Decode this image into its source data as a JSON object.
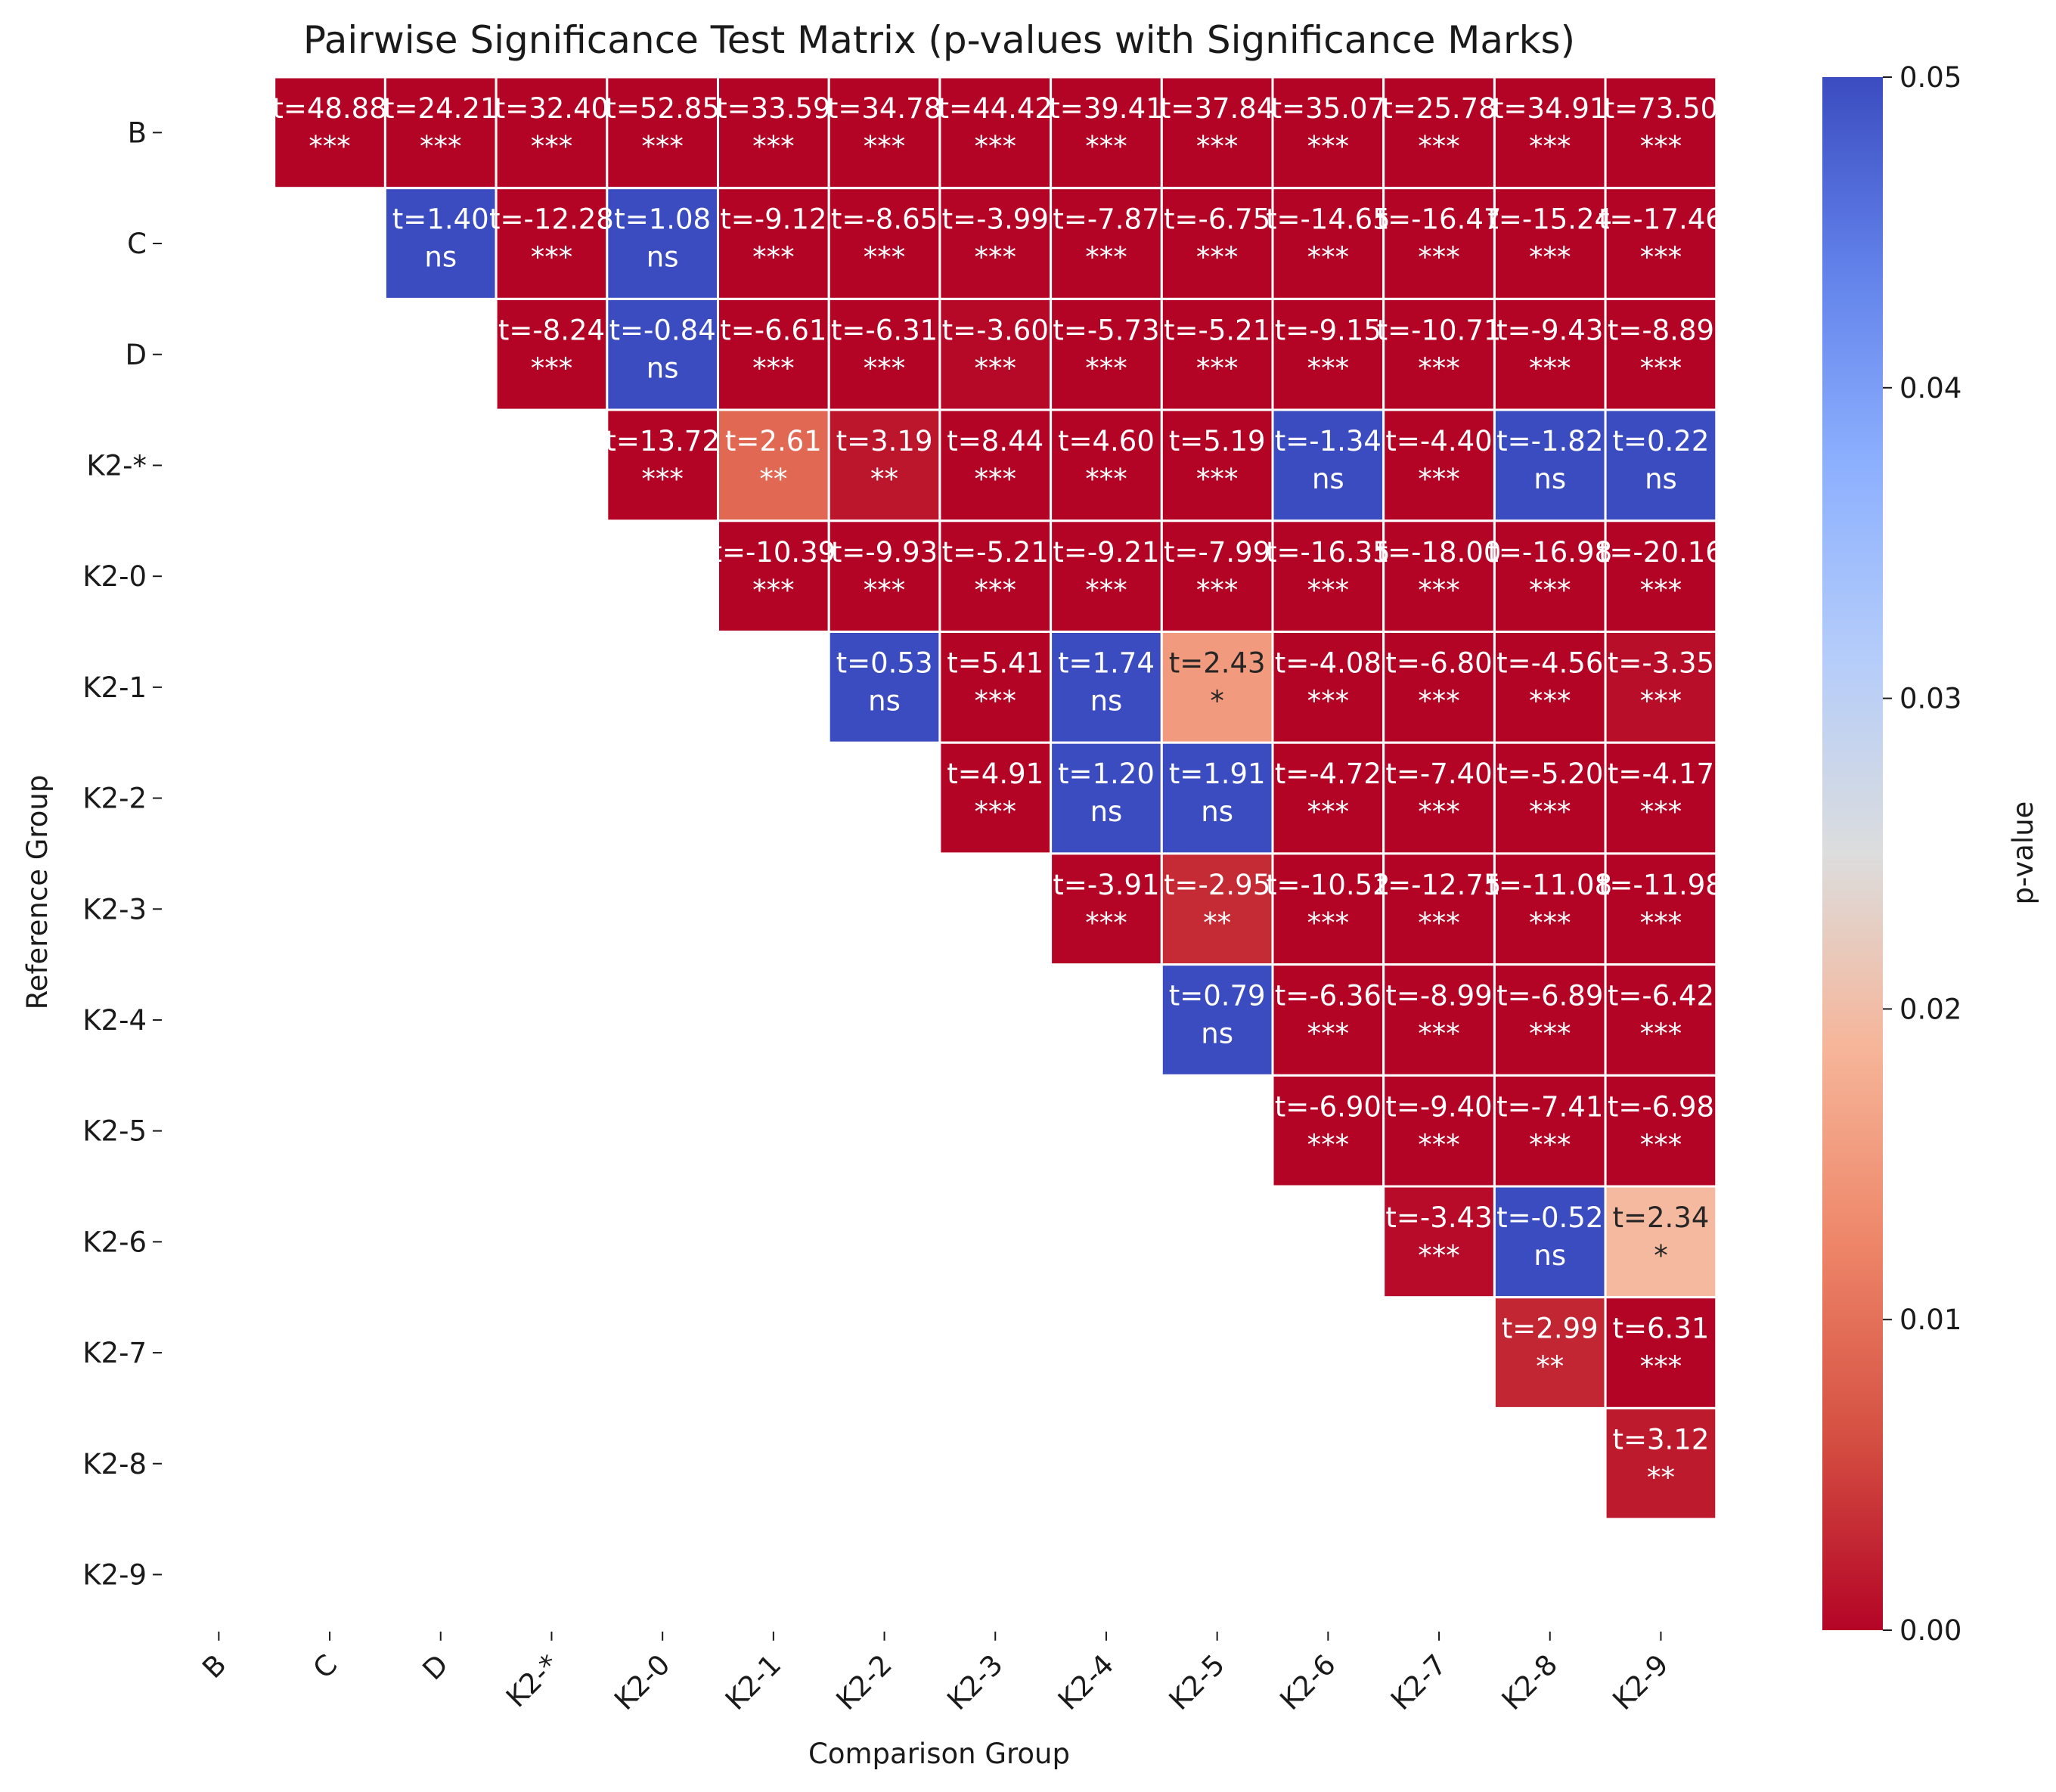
{
  "chart_data": {
    "type": "heatmap",
    "title": "Pairwise Significance Test Matrix (p-values with Significance Marks)",
    "xlabel": "Comparison Group",
    "ylabel": "Reference Group",
    "colorbar_label": "p-value",
    "colormap": "coolwarm",
    "color_range": [
      0.0,
      0.05
    ],
    "colorbar_ticks": [
      "0.00",
      "0.01",
      "0.02",
      "0.03",
      "0.04",
      "0.05"
    ],
    "row_labels": [
      "B",
      "C",
      "D",
      "K2-*",
      "K2-0",
      "K2-1",
      "K2-2",
      "K2-3",
      "K2-4",
      "K2-5",
      "K2-6",
      "K2-7",
      "K2-8",
      "K2-9"
    ],
    "col_labels": [
      "B",
      "C",
      "D",
      "K2-*",
      "K2-0",
      "K2-1",
      "K2-2",
      "K2-3",
      "K2-4",
      "K2-5",
      "K2-6",
      "K2-7",
      "K2-8",
      "K2-9"
    ],
    "cells": [
      {
        "row": "B",
        "col": "C",
        "t": "t=48.88",
        "mark": "***",
        "p": 0.0
      },
      {
        "row": "B",
        "col": "D",
        "t": "t=24.21",
        "mark": "***",
        "p": 0.0
      },
      {
        "row": "B",
        "col": "K2-*",
        "t": "t=32.40",
        "mark": "***",
        "p": 0.0
      },
      {
        "row": "B",
        "col": "K2-0",
        "t": "t=52.85",
        "mark": "***",
        "p": 0.0
      },
      {
        "row": "B",
        "col": "K2-1",
        "t": "t=33.59",
        "mark": "***",
        "p": 0.0
      },
      {
        "row": "B",
        "col": "K2-2",
        "t": "t=34.78",
        "mark": "***",
        "p": 0.0
      },
      {
        "row": "B",
        "col": "K2-3",
        "t": "t=44.42",
        "mark": "***",
        "p": 0.0
      },
      {
        "row": "B",
        "col": "K2-4",
        "t": "t=39.41",
        "mark": "***",
        "p": 0.0
      },
      {
        "row": "B",
        "col": "K2-5",
        "t": "t=37.84",
        "mark": "***",
        "p": 0.0
      },
      {
        "row": "B",
        "col": "K2-6",
        "t": "t=35.07",
        "mark": "***",
        "p": 0.0
      },
      {
        "row": "B",
        "col": "K2-7",
        "t": "t=25.78",
        "mark": "***",
        "p": 0.0
      },
      {
        "row": "B",
        "col": "K2-8",
        "t": "t=34.91",
        "mark": "***",
        "p": 0.0
      },
      {
        "row": "B",
        "col": "K2-9",
        "t": "t=73.50",
        "mark": "***",
        "p": 0.0
      },
      {
        "row": "C",
        "col": "D",
        "t": "t=1.40",
        "mark": "ns",
        "p": 0.05
      },
      {
        "row": "C",
        "col": "K2-*",
        "t": "t=-12.28",
        "mark": "***",
        "p": 0.0
      },
      {
        "row": "C",
        "col": "K2-0",
        "t": "t=1.08",
        "mark": "ns",
        "p": 0.05
      },
      {
        "row": "C",
        "col": "K2-1",
        "t": "t=-9.12",
        "mark": "***",
        "p": 0.0
      },
      {
        "row": "C",
        "col": "K2-2",
        "t": "t=-8.65",
        "mark": "***",
        "p": 0.0
      },
      {
        "row": "C",
        "col": "K2-3",
        "t": "t=-3.99",
        "mark": "***",
        "p": 0.0001
      },
      {
        "row": "C",
        "col": "K2-4",
        "t": "t=-7.87",
        "mark": "***",
        "p": 0.0
      },
      {
        "row": "C",
        "col": "K2-5",
        "t": "t=-6.75",
        "mark": "***",
        "p": 0.0
      },
      {
        "row": "C",
        "col": "K2-6",
        "t": "t=-14.65",
        "mark": "***",
        "p": 0.0
      },
      {
        "row": "C",
        "col": "K2-7",
        "t": "t=-16.47",
        "mark": "***",
        "p": 0.0
      },
      {
        "row": "C",
        "col": "K2-8",
        "t": "t=-15.24",
        "mark": "***",
        "p": 0.0
      },
      {
        "row": "C",
        "col": "K2-9",
        "t": "t=-17.46",
        "mark": "***",
        "p": 0.0
      },
      {
        "row": "D",
        "col": "K2-*",
        "t": "t=-8.24",
        "mark": "***",
        "p": 0.0
      },
      {
        "row": "D",
        "col": "K2-0",
        "t": "t=-0.84",
        "mark": "ns",
        "p": 0.05
      },
      {
        "row": "D",
        "col": "K2-1",
        "t": "t=-6.61",
        "mark": "***",
        "p": 0.0
      },
      {
        "row": "D",
        "col": "K2-2",
        "t": "t=-6.31",
        "mark": "***",
        "p": 0.0
      },
      {
        "row": "D",
        "col": "K2-3",
        "t": "t=-3.60",
        "mark": "***",
        "p": 0.0004
      },
      {
        "row": "D",
        "col": "K2-4",
        "t": "t=-5.73",
        "mark": "***",
        "p": 0.0
      },
      {
        "row": "D",
        "col": "K2-5",
        "t": "t=-5.21",
        "mark": "***",
        "p": 0.0
      },
      {
        "row": "D",
        "col": "K2-6",
        "t": "t=-9.15",
        "mark": "***",
        "p": 0.0
      },
      {
        "row": "D",
        "col": "K2-7",
        "t": "t=-10.71",
        "mark": "***",
        "p": 0.0
      },
      {
        "row": "D",
        "col": "K2-8",
        "t": "t=-9.43",
        "mark": "***",
        "p": 0.0
      },
      {
        "row": "D",
        "col": "K2-9",
        "t": "t=-8.89",
        "mark": "***",
        "p": 0.0
      },
      {
        "row": "K2-*",
        "col": "K2-0",
        "t": "t=13.72",
        "mark": "***",
        "p": 0.0
      },
      {
        "row": "K2-*",
        "col": "K2-1",
        "t": "t=2.61",
        "mark": "**",
        "p": 0.0092
      },
      {
        "row": "K2-*",
        "col": "K2-2",
        "t": "t=3.19",
        "mark": "**",
        "p": 0.0015
      },
      {
        "row": "K2-*",
        "col": "K2-3",
        "t": "t=8.44",
        "mark": "***",
        "p": 0.0
      },
      {
        "row": "K2-*",
        "col": "K2-4",
        "t": "t=4.60",
        "mark": "***",
        "p": 0.0
      },
      {
        "row": "K2-*",
        "col": "K2-5",
        "t": "t=5.19",
        "mark": "***",
        "p": 0.0
      },
      {
        "row": "K2-*",
        "col": "K2-6",
        "t": "t=-1.34",
        "mark": "ns",
        "p": 0.05
      },
      {
        "row": "K2-*",
        "col": "K2-7",
        "t": "t=-4.40",
        "mark": "***",
        "p": 0.0
      },
      {
        "row": "K2-*",
        "col": "K2-8",
        "t": "t=-1.82",
        "mark": "ns",
        "p": 0.05
      },
      {
        "row": "K2-*",
        "col": "K2-9",
        "t": "t=0.22",
        "mark": "ns",
        "p": 0.05
      },
      {
        "row": "K2-0",
        "col": "K2-1",
        "t": "t=-10.39",
        "mark": "***",
        "p": 0.0
      },
      {
        "row": "K2-0",
        "col": "K2-2",
        "t": "t=-9.93",
        "mark": "***",
        "p": 0.0
      },
      {
        "row": "K2-0",
        "col": "K2-3",
        "t": "t=-5.21",
        "mark": "***",
        "p": 0.0
      },
      {
        "row": "K2-0",
        "col": "K2-4",
        "t": "t=-9.21",
        "mark": "***",
        "p": 0.0
      },
      {
        "row": "K2-0",
        "col": "K2-5",
        "t": "t=-7.99",
        "mark": "***",
        "p": 0.0
      },
      {
        "row": "K2-0",
        "col": "K2-6",
        "t": "t=-16.35",
        "mark": "***",
        "p": 0.0
      },
      {
        "row": "K2-0",
        "col": "K2-7",
        "t": "t=-18.00",
        "mark": "***",
        "p": 0.0
      },
      {
        "row": "K2-0",
        "col": "K2-8",
        "t": "t=-16.98",
        "mark": "***",
        "p": 0.0
      },
      {
        "row": "K2-0",
        "col": "K2-9",
        "t": "t=-20.16",
        "mark": "***",
        "p": 0.0
      },
      {
        "row": "K2-1",
        "col": "K2-2",
        "t": "t=0.53",
        "mark": "ns",
        "p": 0.05
      },
      {
        "row": "K2-1",
        "col": "K2-3",
        "t": "t=5.41",
        "mark": "***",
        "p": 0.0
      },
      {
        "row": "K2-1",
        "col": "K2-4",
        "t": "t=1.74",
        "mark": "ns",
        "p": 0.05
      },
      {
        "row": "K2-1",
        "col": "K2-5",
        "t": "t=2.43",
        "mark": "*",
        "p": 0.0152
      },
      {
        "row": "K2-1",
        "col": "K2-6",
        "t": "t=-4.08",
        "mark": "***",
        "p": 0.0
      },
      {
        "row": "K2-1",
        "col": "K2-7",
        "t": "t=-6.80",
        "mark": "***",
        "p": 0.0
      },
      {
        "row": "K2-1",
        "col": "K2-8",
        "t": "t=-4.56",
        "mark": "***",
        "p": 0.0
      },
      {
        "row": "K2-1",
        "col": "K2-9",
        "t": "t=-3.35",
        "mark": "***",
        "p": 0.0008
      },
      {
        "row": "K2-2",
        "col": "K2-3",
        "t": "t=4.91",
        "mark": "***",
        "p": 0.0
      },
      {
        "row": "K2-2",
        "col": "K2-4",
        "t": "t=1.20",
        "mark": "ns",
        "p": 0.05
      },
      {
        "row": "K2-2",
        "col": "K2-5",
        "t": "t=1.91",
        "mark": "ns",
        "p": 0.05
      },
      {
        "row": "K2-2",
        "col": "K2-6",
        "t": "t=-4.72",
        "mark": "***",
        "p": 0.0
      },
      {
        "row": "K2-2",
        "col": "K2-7",
        "t": "t=-7.40",
        "mark": "***",
        "p": 0.0
      },
      {
        "row": "K2-2",
        "col": "K2-8",
        "t": "t=-5.20",
        "mark": "***",
        "p": 0.0
      },
      {
        "row": "K2-2",
        "col": "K2-9",
        "t": "t=-4.17",
        "mark": "***",
        "p": 0.0
      },
      {
        "row": "K2-3",
        "col": "K2-4",
        "t": "t=-3.91",
        "mark": "***",
        "p": 0.0001
      },
      {
        "row": "K2-3",
        "col": "K2-5",
        "t": "t=-2.95",
        "mark": "**",
        "p": 0.0032
      },
      {
        "row": "K2-3",
        "col": "K2-6",
        "t": "t=-10.52",
        "mark": "***",
        "p": 0.0
      },
      {
        "row": "K2-3",
        "col": "K2-7",
        "t": "t=-12.75",
        "mark": "***",
        "p": 0.0
      },
      {
        "row": "K2-3",
        "col": "K2-8",
        "t": "t=-11.08",
        "mark": "***",
        "p": 0.0
      },
      {
        "row": "K2-3",
        "col": "K2-9",
        "t": "t=-11.98",
        "mark": "***",
        "p": 0.0
      },
      {
        "row": "K2-4",
        "col": "K2-5",
        "t": "t=0.79",
        "mark": "ns",
        "p": 0.05
      },
      {
        "row": "K2-4",
        "col": "K2-6",
        "t": "t=-6.36",
        "mark": "***",
        "p": 0.0
      },
      {
        "row": "K2-4",
        "col": "K2-7",
        "t": "t=-8.99",
        "mark": "***",
        "p": 0.0
      },
      {
        "row": "K2-4",
        "col": "K2-8",
        "t": "t=-6.89",
        "mark": "***",
        "p": 0.0
      },
      {
        "row": "K2-4",
        "col": "K2-9",
        "t": "t=-6.42",
        "mark": "***",
        "p": 0.0
      },
      {
        "row": "K2-5",
        "col": "K2-6",
        "t": "t=-6.90",
        "mark": "***",
        "p": 0.0
      },
      {
        "row": "K2-5",
        "col": "K2-7",
        "t": "t=-9.40",
        "mark": "***",
        "p": 0.0
      },
      {
        "row": "K2-5",
        "col": "K2-8",
        "t": "t=-7.41",
        "mark": "***",
        "p": 0.0
      },
      {
        "row": "K2-5",
        "col": "K2-9",
        "t": "t=-6.98",
        "mark": "***",
        "p": 0.0
      },
      {
        "row": "K2-6",
        "col": "K2-7",
        "t": "t=-3.43",
        "mark": "***",
        "p": 0.0006
      },
      {
        "row": "K2-6",
        "col": "K2-8",
        "t": "t=-0.52",
        "mark": "ns",
        "p": 0.05
      },
      {
        "row": "K2-6",
        "col": "K2-9",
        "t": "t=2.34",
        "mark": "*",
        "p": 0.0193
      },
      {
        "row": "K2-7",
        "col": "K2-8",
        "t": "t=2.99",
        "mark": "**",
        "p": 0.0028
      },
      {
        "row": "K2-7",
        "col": "K2-9",
        "t": "t=6.31",
        "mark": "***",
        "p": 0.0
      },
      {
        "row": "K2-8",
        "col": "K2-9",
        "t": "t=3.12",
        "mark": "**",
        "p": 0.0018
      }
    ]
  }
}
